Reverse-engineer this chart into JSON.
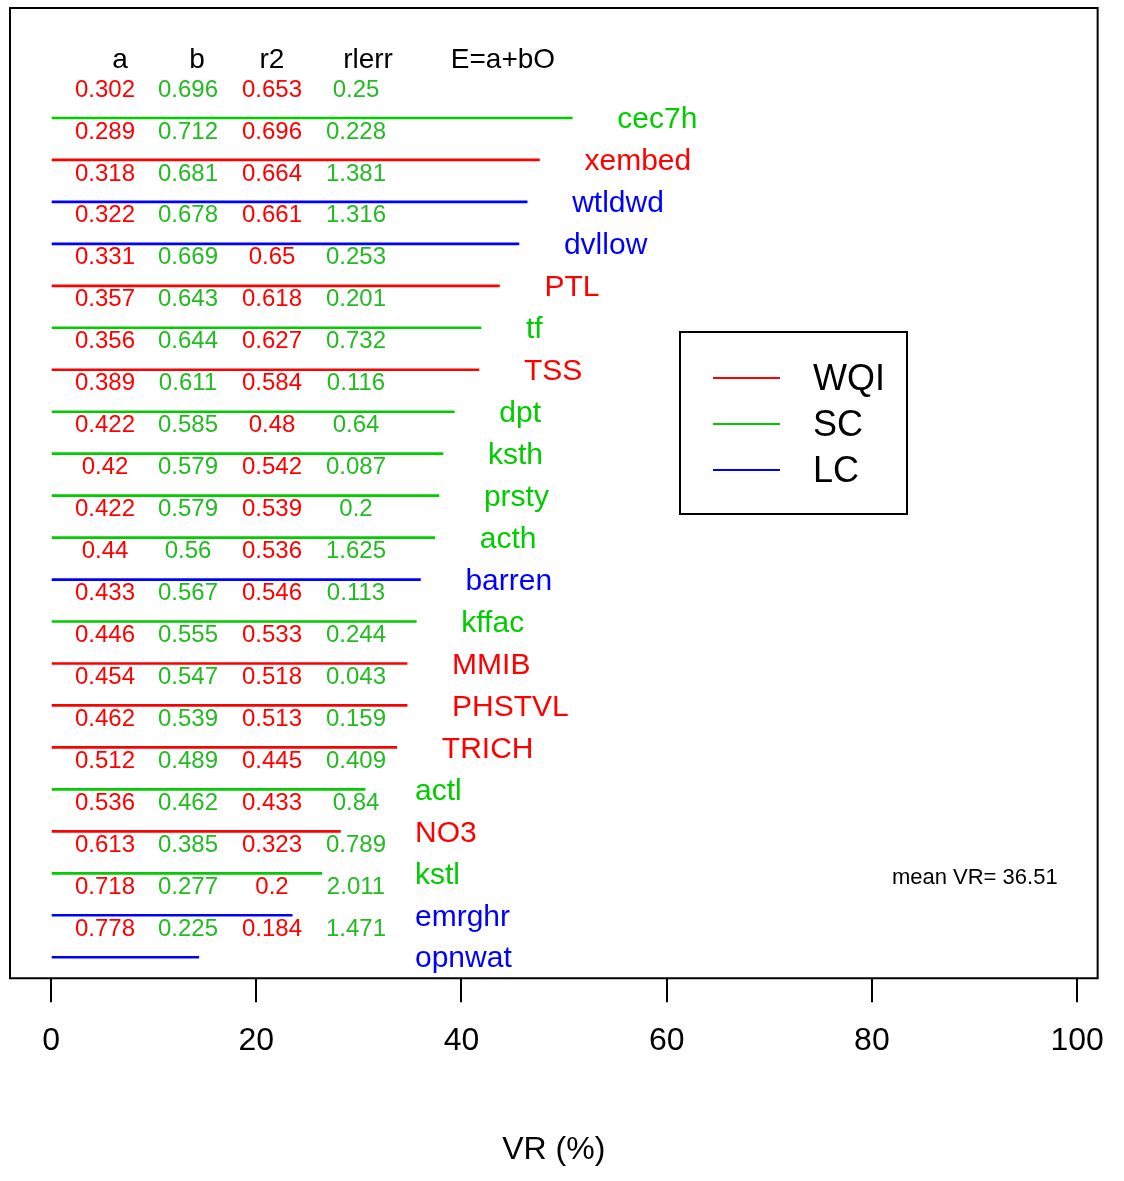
{
  "chart_data": {
    "type": "bar",
    "orientation": "horizontal",
    "stacked": true,
    "xlabel": "VR (%)",
    "categories": [
      "cec7h",
      "xembed",
      "wtldwd",
      "dvllow",
      "PTL",
      "tf",
      "TSS",
      "dpt",
      "ksth",
      "prsty",
      "acth",
      "barren",
      "kffac",
      "MMIB",
      "PHSTVL",
      "TRICH",
      "actl",
      "NO3",
      "kstl",
      "emrghr",
      "opnwat"
    ],
    "series": [
      {
        "name": "WQI",
        "color": "#ff0000",
        "values": [
          null,
          47.6,
          null,
          null,
          43.7,
          null,
          41.7,
          null,
          null,
          null,
          null,
          null,
          null,
          34.7,
          34.7,
          33.7,
          null,
          28.2,
          null,
          null,
          null
        ]
      },
      {
        "name": "SC",
        "color": "#00cc00",
        "values": [
          50.8,
          null,
          null,
          null,
          null,
          41.9,
          null,
          39.3,
          38.2,
          37.8,
          37.4,
          null,
          35.6,
          null,
          null,
          null,
          30.6,
          null,
          26.4,
          null,
          null
        ]
      },
      {
        "name": "LC",
        "color": "#0000ff",
        "values": [
          null,
          null,
          46.4,
          45.6,
          null,
          null,
          null,
          null,
          null,
          null,
          null,
          36.0,
          null,
          null,
          null,
          null,
          null,
          null,
          null,
          23.5,
          14.4
        ]
      }
    ],
    "xlim": [
      -4,
      102
    ],
    "xticks": [
      0,
      20,
      40,
      60,
      80,
      100
    ],
    "tick_labels": "x",
    "legend": "right",
    "annotations": [
      "a b r2 rlerr E=a+bO",
      "0.302 0.696 0.653 0.25",
      "0.289 0.712 0.696 0.228",
      "0.318 0.681 0.664 1.381",
      "0.322 0.678 0.661 1.316",
      "0.331 0.669 0.65 0.253",
      "0.357 0.643 0.618 0.201",
      "0.356 0.644 0.627 0.732",
      "0.389 0.611 0.584 0.116",
      "0.422 0.585 0.48 0.64",
      "0.42 0.579 0.542 0.087",
      "0.422 0.579 0.539 0.2",
      "0.44 0.56 0.536 1.625",
      "0.433 0.567 0.546 0.113",
      "0.446 0.555 0.533 0.244",
      "0.454 0.547 0.518 0.043",
      "0.462 0.539 0.513 0.159",
      "0.512 0.489 0.445 0.409",
      "0.536 0.462 0.433 0.84",
      "0.613 0.385 0.323 0.789",
      "0.718 0.277 0.2 2.011",
      "0.778 0.225 0.184 1.471",
      "mean VR= 36.51"
    ]
  }
}
